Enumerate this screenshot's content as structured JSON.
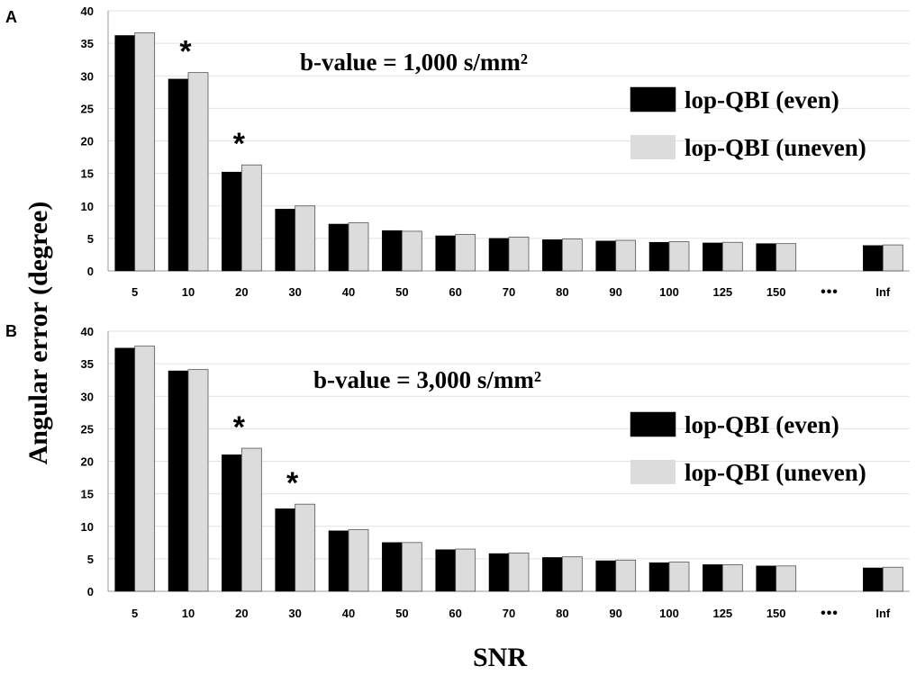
{
  "colors": {
    "even": "#000000",
    "uneven": "#dcdcdc",
    "grid": "#e2e2e2",
    "axis": "#9a9a9a"
  },
  "shared": {
    "ylabel": "Angular error (degree)",
    "xlabel": "SNR"
  },
  "chart_data": [
    {
      "panel": "A",
      "type": "bar",
      "title": "",
      "annotation": "b-value = 1,000 s/mm²",
      "xlabel": "SNR",
      "ylabel": "Angular error (degree)",
      "ylim": [
        0,
        40
      ],
      "yticks": [
        "0",
        "5",
        "10",
        "15",
        "20",
        "25",
        "30",
        "35",
        "40"
      ],
      "grid": true,
      "legend_position": "right",
      "categories": [
        "5",
        "10",
        "20",
        "30",
        "40",
        "50",
        "60",
        "70",
        "80",
        "90",
        "100",
        "125",
        "150",
        "•••",
        "Inf"
      ],
      "series": [
        {
          "name": "lop-QBI (even)",
          "color": "#000000",
          "values": [
            36.2,
            29.5,
            15.2,
            9.5,
            7.2,
            6.2,
            5.4,
            5.0,
            4.8,
            4.6,
            4.4,
            4.3,
            4.2,
            null,
            3.9
          ]
        },
        {
          "name": "lop-QBI (uneven)",
          "color": "#dcdcdc",
          "values": [
            36.6,
            30.5,
            16.3,
            10.0,
            7.4,
            6.1,
            5.6,
            5.2,
            4.9,
            4.7,
            4.5,
            4.4,
            4.2,
            null,
            4.0
          ]
        }
      ],
      "significance": [
        {
          "category": "10",
          "label": "*"
        },
        {
          "category": "20",
          "label": "*"
        }
      ]
    },
    {
      "panel": "B",
      "type": "bar",
      "title": "",
      "annotation": "b-value = 3,000 s/mm²",
      "xlabel": "SNR",
      "ylabel": "Angular error (degree)",
      "ylim": [
        0,
        40
      ],
      "yticks": [
        "0",
        "5",
        "10",
        "15",
        "20",
        "25",
        "30",
        "35",
        "40"
      ],
      "grid": true,
      "legend_position": "right",
      "categories": [
        "5",
        "10",
        "20",
        "30",
        "40",
        "50",
        "60",
        "70",
        "80",
        "90",
        "100",
        "125",
        "150",
        "•••",
        "Inf"
      ],
      "series": [
        {
          "name": "lop-QBI (even)",
          "color": "#000000",
          "values": [
            37.4,
            33.9,
            21.0,
            12.7,
            9.3,
            7.5,
            6.4,
            5.8,
            5.2,
            4.7,
            4.4,
            4.1,
            3.9,
            null,
            3.6
          ]
        },
        {
          "name": "lop-QBI (uneven)",
          "color": "#dcdcdc",
          "values": [
            37.7,
            34.1,
            22.0,
            13.4,
            9.5,
            7.5,
            6.5,
            5.9,
            5.3,
            4.8,
            4.5,
            4.1,
            3.9,
            null,
            3.7
          ]
        }
      ],
      "significance": [
        {
          "category": "20",
          "label": "*"
        },
        {
          "category": "30",
          "label": "*"
        }
      ]
    }
  ]
}
